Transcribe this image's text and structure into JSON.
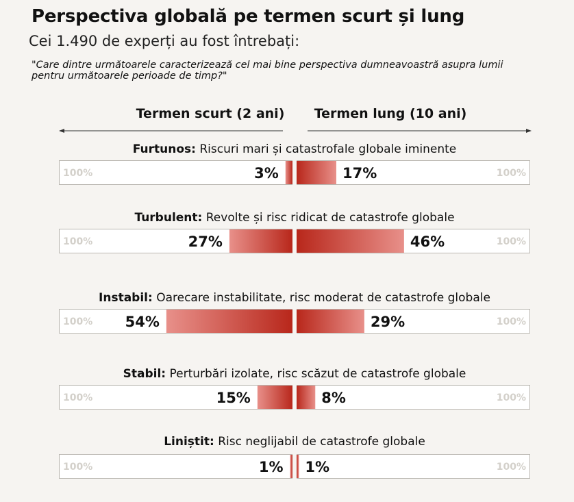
{
  "header": {
    "title": "Perspectiva globală pe termen scurt și lung",
    "subtitle": "Cei 1.490 de experți au fost întrebați:",
    "question": "\"Care dintre următoarele caracterizează cel mai bine perspectiva dumneavoastră asupra lumii pentru următoarele perioade de timp?\""
  },
  "chart_data": {
    "type": "bar",
    "orientation": "horizontal-diverging",
    "left_label": "Termen scurt (2 ani)",
    "right_label": "Termen lung (10 ani)",
    "scale_label": "100%",
    "xlim": [
      0,
      100
    ],
    "categories": [
      {
        "name": "Furtunos:",
        "description": "Riscuri mari și catastrofale globale iminente"
      },
      {
        "name": "Turbulent:",
        "description": "Revolte și risc ridicat de catastrofe globale"
      },
      {
        "name": "Instabil:",
        "description": "Oarecare instabilitate, risc moderat de catastrofe globale"
      },
      {
        "name": "Stabil:",
        "description": "Perturbări izolate, risc scăzut de catastrofe globale"
      },
      {
        "name": "Liniștit:",
        "description": "Risc neglijabil de catastrofe globale"
      }
    ],
    "series": [
      {
        "values": [
          3,
          27,
          54,
          15,
          1
        ],
        "labels": [
          "3%",
          "27%",
          "54%",
          "15%",
          "1%"
        ]
      },
      {
        "values": [
          17,
          46,
          29,
          8,
          1
        ],
        "labels": [
          "17%",
          "46%",
          "29%",
          "8%",
          "1%"
        ]
      }
    ],
    "colors": {
      "dark": "#b8271b",
      "light": "#e8908a",
      "frame": "#b9b6b0",
      "scale_text": "#d3d0ca"
    }
  }
}
